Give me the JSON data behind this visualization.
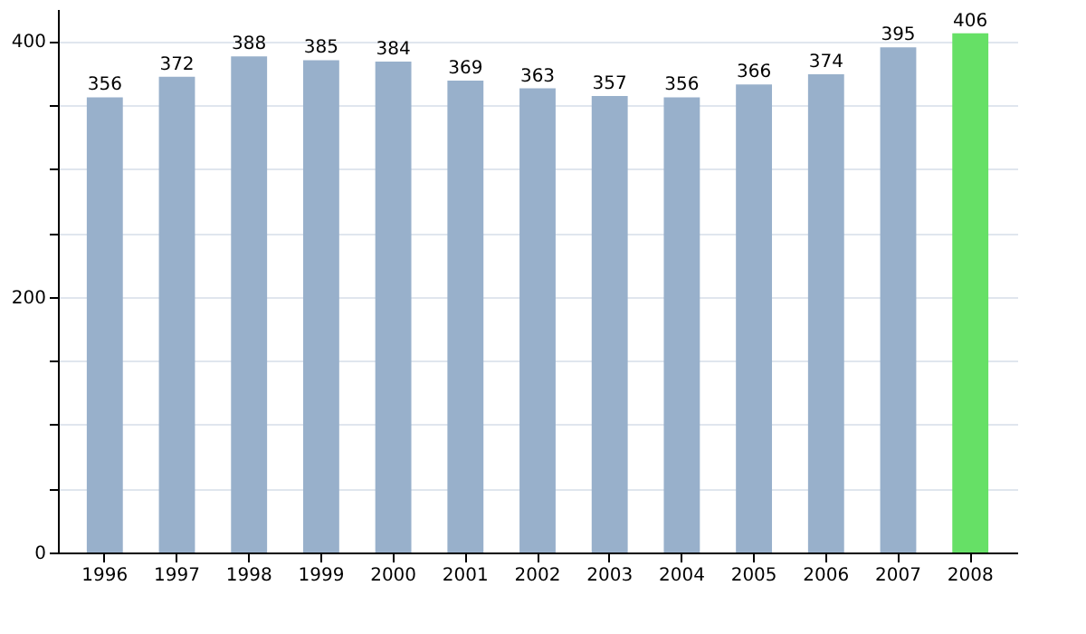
{
  "chart_data": {
    "type": "bar",
    "categories": [
      "1996",
      "1997",
      "1998",
      "1999",
      "2000",
      "2001",
      "2002",
      "2003",
      "2004",
      "2005",
      "2006",
      "2007",
      "2008"
    ],
    "values": [
      356,
      372,
      388,
      385,
      384,
      369,
      363,
      357,
      356,
      366,
      374,
      395,
      406
    ],
    "colors": [
      "#98b0cb",
      "#98b0cb",
      "#98b0cb",
      "#98b0cb",
      "#98b0cb",
      "#98b0cb",
      "#98b0cb",
      "#98b0cb",
      "#98b0cb",
      "#98b0cb",
      "#98b0cb",
      "#98b0cb",
      "#66e066"
    ],
    "ylim": [
      0,
      425
    ],
    "yticks": [
      0,
      {
        "value": 50,
        "label": null
      },
      {
        "value": 100,
        "label": null
      },
      {
        "value": 150,
        "label": null
      },
      200,
      {
        "value": 250,
        "label": null
      },
      {
        "value": 300,
        "label": null
      },
      {
        "value": 350,
        "label": null
      },
      400
    ],
    "grid": "y",
    "data_labels": true
  }
}
